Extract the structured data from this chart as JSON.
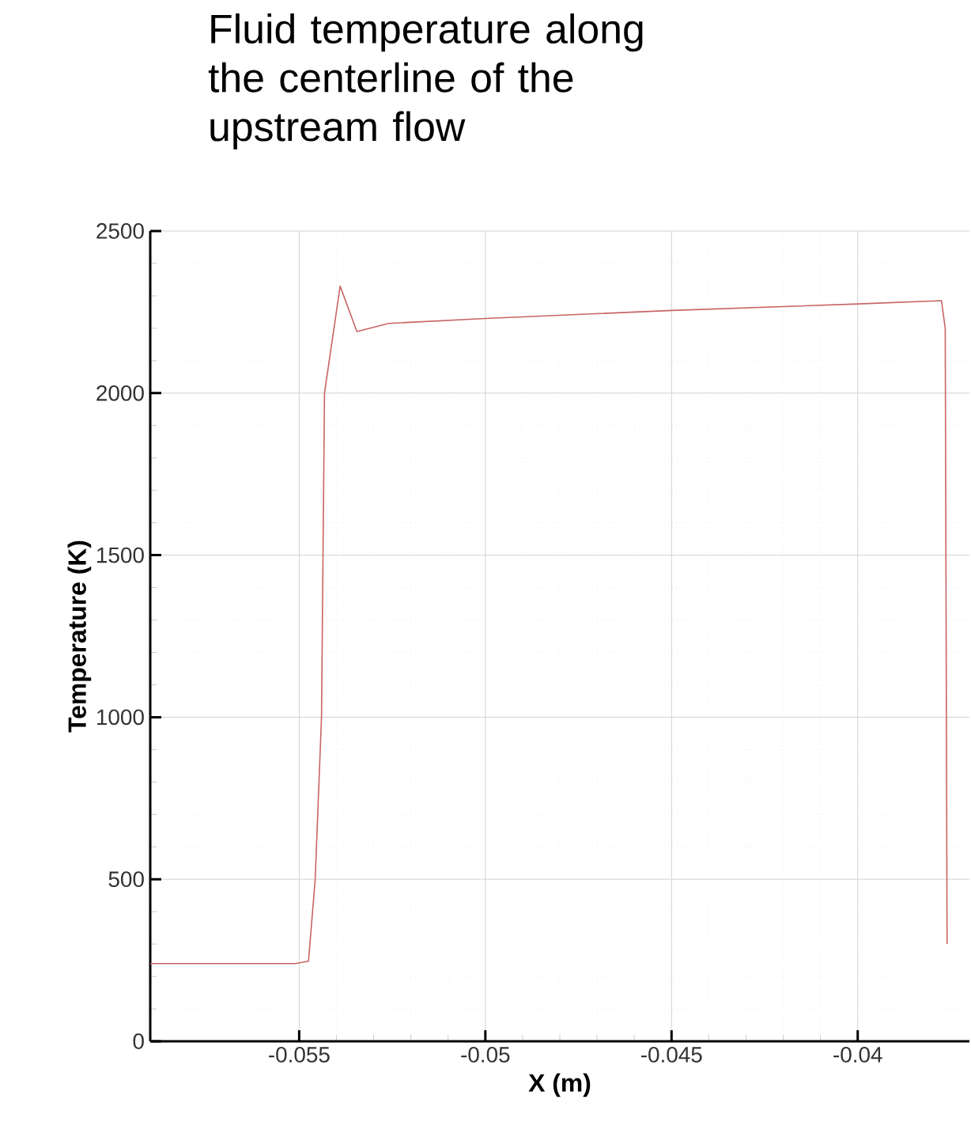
{
  "chart_data": {
    "type": "line",
    "title": "Fluid temperature along the centerline of the upstream flow",
    "xlabel": "X (m)",
    "ylabel": "Temperature (K)",
    "series": [
      {
        "color": "#c86464",
        "x": [
          -0.059,
          -0.0551,
          -0.05475,
          -0.05457,
          -0.0544,
          -0.05432,
          -0.0539,
          -0.05345,
          -0.0526,
          -0.05,
          -0.045,
          -0.04,
          -0.03775,
          -0.03765,
          -0.0376
        ],
        "values": [
          240,
          240,
          247,
          500,
          1000,
          2000,
          2330,
          2190,
          2215,
          2230,
          2255,
          2275,
          2285,
          2200,
          300
        ]
      }
    ],
    "xlim": [
      -0.059,
      -0.037
    ],
    "ylim": [
      0,
      2500
    ],
    "xticks": [
      -0.055,
      -0.05,
      -0.045,
      -0.04
    ],
    "yticks": [
      0,
      500,
      1000,
      1500,
      2000,
      2500
    ],
    "grid": true,
    "marker": "none",
    "line_style": "solid"
  }
}
